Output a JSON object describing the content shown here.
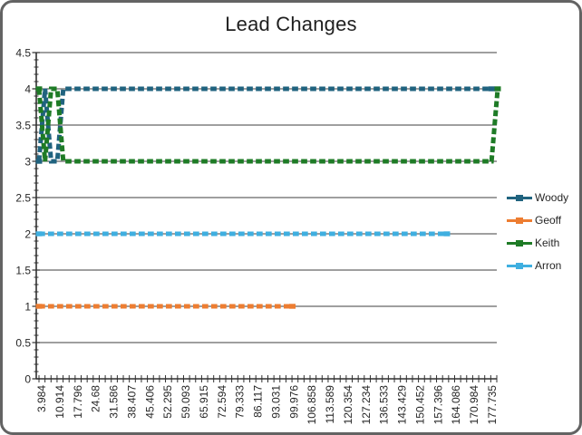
{
  "window": {
    "title": "Lead Changes"
  },
  "chart_data": {
    "type": "line",
    "title": "Lead Changes",
    "x_tick_labels": [
      "3.984",
      "10.914",
      "17.796",
      "24.68",
      "31.586",
      "38.407",
      "45.406",
      "52.295",
      "59.093",
      "65.915",
      "72.594",
      "79.333",
      "86.117",
      "93.031",
      "99.976",
      "106.858",
      "113.589",
      "120.354",
      "127.234",
      "136.533",
      "143.429",
      "150.452",
      "157.396",
      "164.086",
      "170.984",
      "177.735"
    ],
    "y_tick_labels": [
      "0",
      "0.5",
      "1",
      "1.5",
      "2",
      "2.5",
      "3",
      "3.5",
      "4",
      "4.5"
    ],
    "ylim": [
      0,
      4.5
    ],
    "xlim": [
      3.984,
      177.735
    ],
    "grid": "horizontal black gridlines every 0.5",
    "legend_position": "right",
    "line_style": "thick dashed lines with square markers",
    "series": [
      {
        "name": "Woody",
        "color": "#20637F",
        "points": [
          [
            3.984,
            3
          ],
          [
            6.3,
            4
          ],
          [
            8.6,
            3
          ],
          [
            10.914,
            3
          ],
          [
            13.2,
            4
          ],
          [
            175.4,
            4
          ]
        ]
      },
      {
        "name": "Geoff",
        "color": "#ED7D31",
        "points": [
          [
            3.984,
            1
          ],
          [
            99.976,
            1
          ]
        ]
      },
      {
        "name": "Keith",
        "color": "#1E7B26",
        "points": [
          [
            3.984,
            4
          ],
          [
            6.3,
            3
          ],
          [
            8.6,
            4
          ],
          [
            10.914,
            4
          ],
          [
            13.2,
            3
          ],
          [
            175.4,
            3
          ],
          [
            177.735,
            4
          ]
        ]
      },
      {
        "name": "Arron",
        "color": "#3FAFE0",
        "points": [
          [
            3.984,
            2
          ],
          [
            158.5,
            2
          ]
        ]
      }
    ]
  }
}
